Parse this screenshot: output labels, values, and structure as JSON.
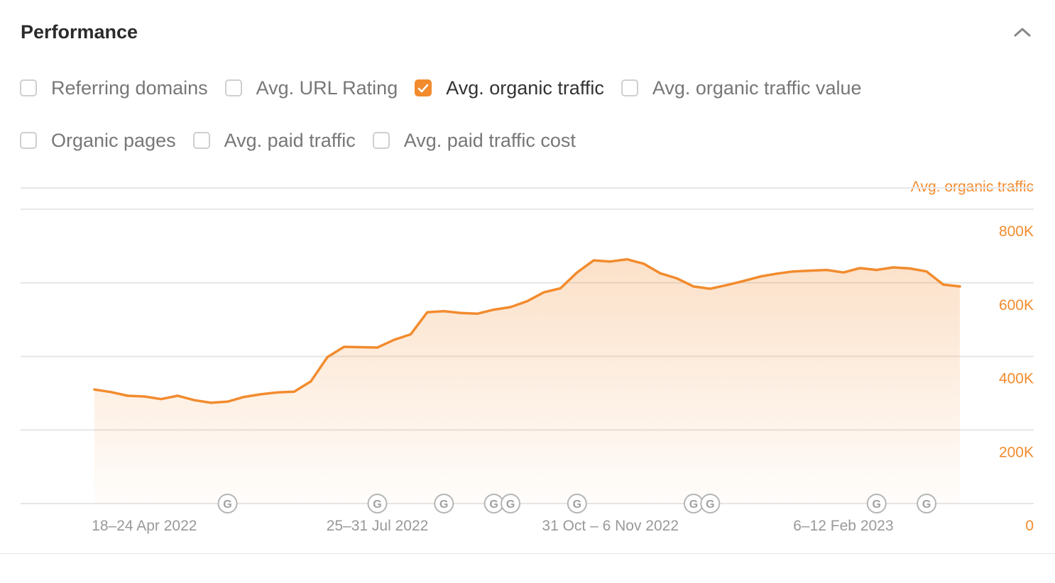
{
  "panel": {
    "title": "Performance"
  },
  "options": [
    [
      {
        "label": "Referring domains",
        "checked": false
      },
      {
        "label": "Avg. URL Rating",
        "checked": false
      },
      {
        "label": "Avg. organic traffic",
        "checked": true
      },
      {
        "label": "Avg. organic traffic value",
        "checked": false
      }
    ],
    [
      {
        "label": "Organic pages",
        "checked": false
      },
      {
        "label": "Avg. paid traffic",
        "checked": false
      },
      {
        "label": "Avg. paid traffic cost",
        "checked": false
      }
    ]
  ],
  "colors": {
    "accent": "#f28b2e",
    "grid": "#e6e6e6",
    "tick": "#999999"
  },
  "icons": {
    "collapse": "chevron-up-icon",
    "check": "check-icon",
    "update_marker": "google-update-icon"
  },
  "chart_data": {
    "type": "area",
    "axis_title": "Avg. organic traffic",
    "ylim": [
      0,
      800000
    ],
    "y_ticks": [
      0,
      200000,
      400000,
      600000,
      800000
    ],
    "y_tick_labels": [
      "0",
      "200K",
      "400K",
      "600K",
      "800K"
    ],
    "x_tick_labels": [
      "18–24 Apr 2022",
      "25–31 Jul 2022",
      "31 Oct – 6 Nov 2022",
      "6–12 Feb 2023"
    ],
    "x_tick_indices": [
      3,
      17,
      31,
      45
    ],
    "series": [
      {
        "values": [
          310000,
          303000,
          293000,
          291000,
          284000,
          293000,
          281000,
          274000,
          277000,
          290000,
          297000,
          302000,
          304000,
          332000,
          398000,
          426000,
          425000,
          424000,
          445000,
          460000,
          520000,
          523000,
          518000,
          516000,
          527000,
          534000,
          550000,
          574000,
          585000,
          628000,
          661000,
          658000,
          664000,
          652000,
          626000,
          612000,
          590000,
          584000,
          594000,
          605000,
          617000,
          625000,
          631000,
          633000,
          635000,
          628000,
          640000,
          635000,
          642000,
          639000,
          631000,
          595000,
          590000
        ]
      }
    ],
    "update_markers": [
      8,
      17,
      21,
      24,
      25,
      29,
      36,
      37,
      47,
      50
    ]
  }
}
